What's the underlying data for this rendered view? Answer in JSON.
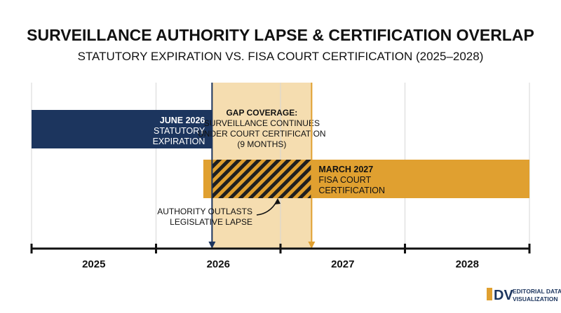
{
  "title": "SURVEILLANCE AUTHORITY LAPSE & CERTIFICATION OVERLAP",
  "subtitle": "STATUTORY EXPIRATION VS. FISA COURT CERTIFICATION (2025–2028)",
  "colors": {
    "navy": "#1c355e",
    "gold": "#e0a030",
    "gap_fill": "#f5ddb0",
    "text": "#111111",
    "grid": "#d6d6d6"
  },
  "chart_data": {
    "type": "timeline",
    "x_domain": [
      2025.0,
      2029.0
    ],
    "ticks": [
      {
        "label": "2025",
        "start": 2025.0,
        "end": 2026.0
      },
      {
        "label": "2026",
        "start": 2026.0,
        "end": 2027.0
      },
      {
        "label": "2027",
        "start": 2027.0,
        "end": 2028.0
      },
      {
        "label": "2028",
        "start": 2028.0,
        "end": 2029.0
      }
    ],
    "bars": [
      {
        "name": "statutory",
        "start": 2025.0,
        "end": 2026.45,
        "color": "#1c355e",
        "label_lines": [
          "JUNE 2026",
          "STATUTORY",
          "EXPIRATION"
        ]
      },
      {
        "name": "fisa",
        "start": 2026.38,
        "end": 2029.0,
        "color": "#e0a030",
        "label_lines": [
          "MARCH 2027",
          "FISA COURT",
          "CERTIFICATION"
        ]
      }
    ],
    "gap": {
      "start": 2026.45,
      "end": 2027.25,
      "label_lines": [
        "GAP COVERAGE:",
        "SURVEILLANCE CONTINUES",
        "UNDER COURT CERTIFICATION",
        "(9 MONTHS)"
      ]
    },
    "markers": [
      {
        "name": "statutory-expiration",
        "x": 2026.45,
        "color": "#1c355e"
      },
      {
        "name": "fisa-certification",
        "x": 2027.25,
        "color": "#e0a030"
      }
    ],
    "annotation": {
      "lines": [
        "AUTHORITY OUTLASTS",
        "LEGISLATIVE LAPSE"
      ]
    }
  },
  "branding": {
    "logo_letters": "DV",
    "lines": [
      "EDITORIAL DATA",
      "VISUALIZATION"
    ]
  }
}
